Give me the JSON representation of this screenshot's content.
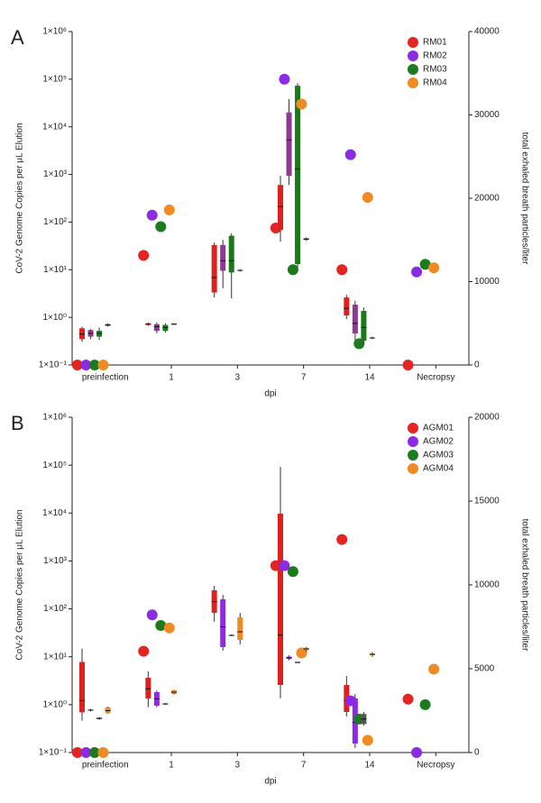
{
  "chart_data": [
    {
      "type": "scatter",
      "panel": "A",
      "ylabel": "CoV-2 Genome Copies per μL Elution",
      "y2label": "total exhaled breath particles/liter",
      "xlabel": "dpi",
      "log_scale": true,
      "legend": "top-right",
      "categories": [
        "preinfection",
        "1",
        "3",
        "7",
        "14",
        "Necropsy"
      ],
      "ylim": [
        0.1,
        1000000
      ],
      "yticks": [
        {
          "value": 0.1,
          "label": "1×10⁻¹"
        },
        {
          "value": 1,
          "label": "1×10⁰"
        },
        {
          "value": 10,
          "label": "1×10¹"
        },
        {
          "value": 100,
          "label": "1×10²"
        },
        {
          "value": 1000,
          "label": "1×10³"
        },
        {
          "value": 10000,
          "label": "1×10⁴"
        },
        {
          "value": 100000,
          "label": "1×10⁵"
        },
        {
          "value": 1000000,
          "label": "1×10⁶"
        }
      ],
      "y2lim": [
        0,
        40000
      ],
      "y2ticks": [
        0,
        10000,
        20000,
        30000,
        40000
      ],
      "series": [
        {
          "name": "RM01",
          "color": "#e32420",
          "box_color": "#e0201c",
          "values": [
            0.1,
            20,
            null,
            75,
            10,
            0.1
          ],
          "boxes": [
            [
              2800,
              3100,
              3700,
              4400,
              4600
            ],
            [
              4700,
              4800,
              4900,
              5000,
              5100
            ],
            [
              8100,
              8700,
              10500,
              14400,
              14700
            ],
            [
              14800,
              16200,
              19000,
              21600,
              22700
            ],
            [
              5500,
              5950,
              6800,
              8100,
              8400
            ],
            null
          ]
        },
        {
          "name": "RM02",
          "color": "#8b2be2",
          "box_color": "#8e3a8e",
          "values": [
            0.1,
            140,
            null,
            100000,
            2600,
            9
          ],
          "boxes": [
            [
              3100,
              3400,
              3800,
              4200,
              4300
            ],
            [
              3800,
              4100,
              4600,
              4900,
              5100
            ],
            [
              9200,
              11300,
              12500,
              14400,
              15000
            ],
            [
              21600,
              22700,
              27000,
              30300,
              31900
            ],
            [
              2900,
              3780,
              5000,
              7240,
              7700
            ],
            null
          ]
        },
        {
          "name": "RM03",
          "color": "#1e7a1e",
          "box_color": "#1a7a1a",
          "values": [
            0.1,
            80,
            null,
            10,
            0.28,
            13
          ],
          "boxes": [
            [
              3000,
              3400,
              3800,
              4100,
              4500
            ],
            [
              3900,
              4100,
              4500,
              4800,
              5000
            ],
            [
              8000,
              11100,
              12500,
              15500,
              15800
            ],
            [
              11700,
              12100,
              23500,
              33500,
              33800
            ],
            [
              2600,
              2920,
              4500,
              6490,
              6900
            ],
            null
          ]
        },
        {
          "name": "RM04",
          "color": "#f08a24",
          "box_color": "#555555",
          "values": [
            0.1,
            180,
            null,
            30000,
            330,
            11
          ],
          "boxes": [
            [
              4600,
              4700,
              4800,
              4900,
              5000
            ],
            [
              4800,
              4850,
              4900,
              4950,
              5000
            ],
            [
              11200,
              11300,
              11350,
              11400,
              11500
            ],
            [
              14900,
              15000,
              15100,
              15200,
              15300
            ],
            [
              3100,
              3200,
              3240,
              3300,
              3400
            ],
            null
          ]
        }
      ]
    },
    {
      "type": "scatter",
      "panel": "B",
      "ylabel": "CoV-2 Genome Copies per μL Elution",
      "y2label": "total exhaled breath particles/liter",
      "xlabel": "dpi",
      "log_scale": true,
      "legend": "top-right",
      "categories": [
        "preinfection",
        "1",
        "3",
        "7",
        "14",
        "Necropsy"
      ],
      "ylim": [
        0.1,
        1000000
      ],
      "yticks": [
        {
          "value": 0.1,
          "label": "1×10⁻¹"
        },
        {
          "value": 1,
          "label": "1×10⁰"
        },
        {
          "value": 10,
          "label": "1×10¹"
        },
        {
          "value": 100,
          "label": "1×10²"
        },
        {
          "value": 1000,
          "label": "1×10³"
        },
        {
          "value": 10000,
          "label": "1×10⁴"
        },
        {
          "value": 100000,
          "label": "1×10⁵"
        },
        {
          "value": 1000000,
          "label": "1×10⁶"
        }
      ],
      "y2lim": [
        0,
        20000
      ],
      "y2ticks": [
        0,
        5000,
        10000,
        15000,
        20000
      ],
      "series": [
        {
          "name": "AGM01",
          "color": "#e32420",
          "box_color": "#e0201c",
          "values": [
            0.1,
            13,
            null,
            800,
            2800,
            1.3
          ],
          "boxes": [
            [
              1900,
              2400,
              3100,
              5400,
              6200
            ],
            [
              2700,
              3230,
              3800,
              4460,
              4840
            ],
            [
              7800,
              8330,
              9000,
              9680,
              9950
            ],
            [
              3230,
              4030,
              7000,
              14250,
              17040
            ],
            [
              2150,
              2420,
              3100,
              4030,
              4570
            ],
            null
          ]
        },
        {
          "name": "AGM02",
          "color": "#8b2be2",
          "box_color": "#8b2be2",
          "values": [
            0.1,
            75,
            null,
            800,
            1.2,
            0.1
          ],
          "boxes": [
            [
              2450,
              2500,
              2530,
              2560,
              2600
            ],
            [
              2700,
              2800,
              3200,
              3600,
              3700
            ],
            [
              6080,
              6290,
              7500,
              9140,
              9400
            ],
            [
              5500,
              5580,
              5650,
              5720,
              5800
            ],
            [
              270,
              540,
              1800,
              3230,
              3490
            ],
            null
          ]
        },
        {
          "name": "AGM03",
          "color": "#1e7a1e",
          "box_color": "#555555",
          "values": [
            0.1,
            45,
            null,
            600,
            0.5,
            1.0
          ],
          "boxes": [
            [
              1950,
              2000,
              2040,
              2080,
              2100
            ],
            [
              2850,
              2880,
              2900,
              2920,
              2950
            ],
            [
              6950,
              6970,
              6990,
              7010,
              7050
            ],
            [
              5350,
              5370,
              5380,
              5390,
              5400
            ],
            [
              1600,
              1700,
              2000,
              2300,
              2420
            ],
            null
          ]
        },
        {
          "name": "AGM04",
          "color": "#f08a24",
          "box_color": "#f08a24",
          "values": [
            0.1,
            40,
            null,
            12,
            0.18,
            5.5
          ],
          "boxes": [
            [
              2300,
              2350,
              2500,
              2700,
              2750
            ],
            [
              3450,
              3500,
              3600,
              3710,
              3750
            ],
            [
              6450,
              6720,
              7200,
              8060,
              8330
            ],
            [
              6000,
              6100,
              6180,
              6250,
              6300
            ],
            [
              5700,
              5800,
              5860,
              5900,
              6000
            ],
            null
          ]
        }
      ]
    }
  ]
}
